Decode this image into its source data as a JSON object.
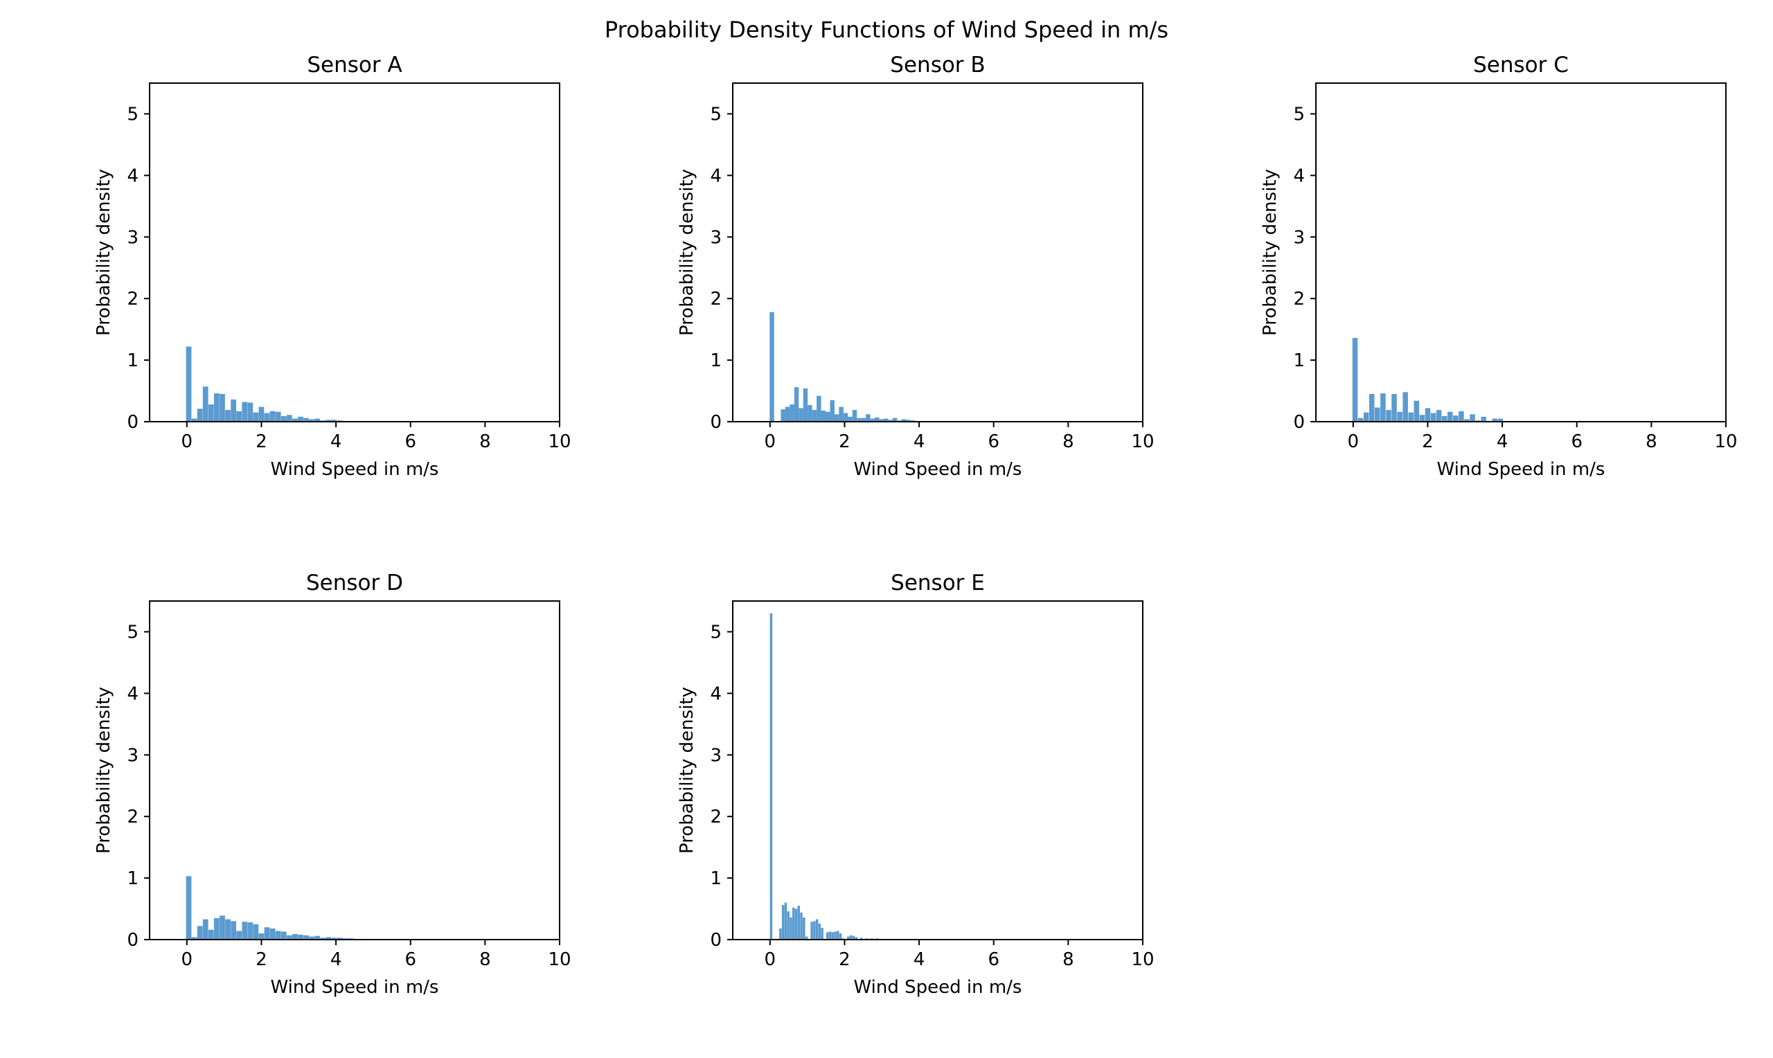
{
  "figure": {
    "title": "Probability Density Functions of Wind Speed in m/s"
  },
  "colors": {
    "bar": "#5b9bd0",
    "axis": "#000000"
  },
  "chart_data": [
    {
      "type": "bar",
      "title": "Sensor A",
      "xlabel": "Wind Speed in m/s",
      "ylabel": "Probability density",
      "xlim": [
        -1,
        10
      ],
      "ylim": [
        0,
        5.5
      ],
      "xticks": [
        0,
        2,
        4,
        6,
        8,
        10
      ],
      "yticks": [
        0,
        1,
        2,
        3,
        4,
        5
      ],
      "bin_width": 0.145,
      "x": [
        0.05,
        0.2,
        0.35,
        0.5,
        0.65,
        0.8,
        0.95,
        1.1,
        1.25,
        1.4,
        1.55,
        1.7,
        1.85,
        2.0,
        2.15,
        2.3,
        2.45,
        2.6,
        2.75,
        2.9,
        3.05,
        3.2,
        3.35,
        3.5,
        3.65,
        3.8,
        3.95,
        4.1,
        4.25
      ],
      "values": [
        1.22,
        0.05,
        0.21,
        0.57,
        0.28,
        0.46,
        0.45,
        0.19,
        0.36,
        0.17,
        0.32,
        0.31,
        0.15,
        0.24,
        0.14,
        0.17,
        0.16,
        0.09,
        0.11,
        0.05,
        0.08,
        0.06,
        0.04,
        0.05,
        0.02,
        0.03,
        0.03,
        0.02,
        0.01
      ]
    },
    {
      "type": "bar",
      "title": "Sensor B",
      "xlabel": "Wind Speed in m/s",
      "ylabel": "Probability density",
      "xlim": [
        -1,
        10
      ],
      "ylim": [
        0,
        5.5
      ],
      "xticks": [
        0,
        2,
        4,
        6,
        8,
        10
      ],
      "yticks": [
        0,
        1,
        2,
        3,
        4,
        5
      ],
      "bin_width": 0.12,
      "x": [
        0.05,
        0.35,
        0.47,
        0.59,
        0.71,
        0.83,
        0.95,
        1.07,
        1.19,
        1.31,
        1.43,
        1.55,
        1.67,
        1.79,
        1.91,
        2.03,
        2.15,
        2.27,
        2.39,
        2.51,
        2.63,
        2.75,
        2.87,
        2.99,
        3.11,
        3.23,
        3.35,
        3.47,
        3.59,
        3.71,
        3.83,
        3.95,
        4.3,
        4.7
      ],
      "values": [
        1.78,
        0.2,
        0.24,
        0.28,
        0.56,
        0.22,
        0.54,
        0.27,
        0.19,
        0.42,
        0.18,
        0.16,
        0.35,
        0.12,
        0.24,
        0.14,
        0.08,
        0.19,
        0.06,
        0.06,
        0.12,
        0.05,
        0.07,
        0.04,
        0.05,
        0.03,
        0.06,
        0.02,
        0.04,
        0.03,
        0.02,
        0.01,
        0.01,
        0.01
      ]
    },
    {
      "type": "bar",
      "title": "Sensor C",
      "xlabel": "Wind Speed in m/s",
      "ylabel": "Probability density",
      "xlim": [
        -1,
        10
      ],
      "ylim": [
        0,
        5.5
      ],
      "xticks": [
        0,
        2,
        4,
        6,
        8,
        10
      ],
      "yticks": [
        0,
        1,
        2,
        3,
        4,
        5
      ],
      "bin_width": 0.14,
      "x": [
        0.05,
        0.2,
        0.35,
        0.5,
        0.65,
        0.8,
        0.95,
        1.1,
        1.25,
        1.4,
        1.55,
        1.7,
        1.85,
        2.0,
        2.15,
        2.3,
        2.45,
        2.6,
        2.75,
        2.9,
        3.05,
        3.2,
        3.35,
        3.5,
        3.65,
        3.8,
        3.95,
        4.1,
        4.25
      ],
      "values": [
        1.36,
        0.06,
        0.15,
        0.45,
        0.23,
        0.46,
        0.19,
        0.45,
        0.16,
        0.48,
        0.15,
        0.34,
        0.11,
        0.22,
        0.14,
        0.19,
        0.09,
        0.16,
        0.1,
        0.17,
        0.04,
        0.12,
        0.02,
        0.08,
        0.01,
        0.05,
        0.05,
        0.01,
        0.01
      ]
    },
    {
      "type": "bar",
      "title": "Sensor D",
      "xlabel": "Wind Speed in m/s",
      "ylabel": "Probability density",
      "xlim": [
        -1,
        10
      ],
      "ylim": [
        0,
        5.5
      ],
      "xticks": [
        0,
        2,
        4,
        6,
        8,
        10
      ],
      "yticks": [
        0,
        1,
        2,
        3,
        4,
        5
      ],
      "bin_width": 0.145,
      "x": [
        0.05,
        0.2,
        0.35,
        0.5,
        0.65,
        0.8,
        0.95,
        1.1,
        1.25,
        1.4,
        1.55,
        1.7,
        1.85,
        2.0,
        2.15,
        2.3,
        2.45,
        2.6,
        2.75,
        2.9,
        3.05,
        3.2,
        3.35,
        3.5,
        3.65,
        3.8,
        3.95,
        4.1,
        4.25,
        4.4,
        4.55,
        4.7
      ],
      "values": [
        1.03,
        0.04,
        0.22,
        0.33,
        0.16,
        0.35,
        0.39,
        0.33,
        0.3,
        0.14,
        0.29,
        0.28,
        0.25,
        0.1,
        0.2,
        0.18,
        0.14,
        0.13,
        0.07,
        0.09,
        0.08,
        0.07,
        0.05,
        0.06,
        0.03,
        0.04,
        0.03,
        0.03,
        0.02,
        0.02,
        0.01,
        0.01
      ]
    },
    {
      "type": "bar",
      "title": "Sensor E",
      "xlabel": "Wind Speed in m/s",
      "ylabel": "Probability density",
      "xlim": [
        -1,
        10
      ],
      "ylim": [
        0,
        5.5
      ],
      "xticks": [
        0,
        2,
        4,
        6,
        8,
        10
      ],
      "yticks": [
        0,
        1,
        2,
        3,
        4,
        5
      ],
      "bin_width": 0.065,
      "x": [
        0.03,
        0.28,
        0.35,
        0.42,
        0.49,
        0.56,
        0.63,
        0.7,
        0.77,
        0.84,
        0.91,
        0.98,
        1.12,
        1.19,
        1.26,
        1.33,
        1.4,
        1.54,
        1.61,
        1.68,
        1.75,
        1.82,
        1.89,
        1.96,
        2.1,
        2.17,
        2.24,
        2.31,
        2.45,
        2.59,
        2.73,
        2.87,
        3.01
      ],
      "values": [
        5.3,
        0.18,
        0.56,
        0.6,
        0.46,
        0.36,
        0.52,
        0.5,
        0.55,
        0.44,
        0.36,
        0.05,
        0.29,
        0.3,
        0.33,
        0.26,
        0.19,
        0.12,
        0.13,
        0.12,
        0.13,
        0.14,
        0.1,
        0.02,
        0.05,
        0.07,
        0.06,
        0.04,
        0.03,
        0.02,
        0.02,
        0.02,
        0.01
      ]
    }
  ]
}
